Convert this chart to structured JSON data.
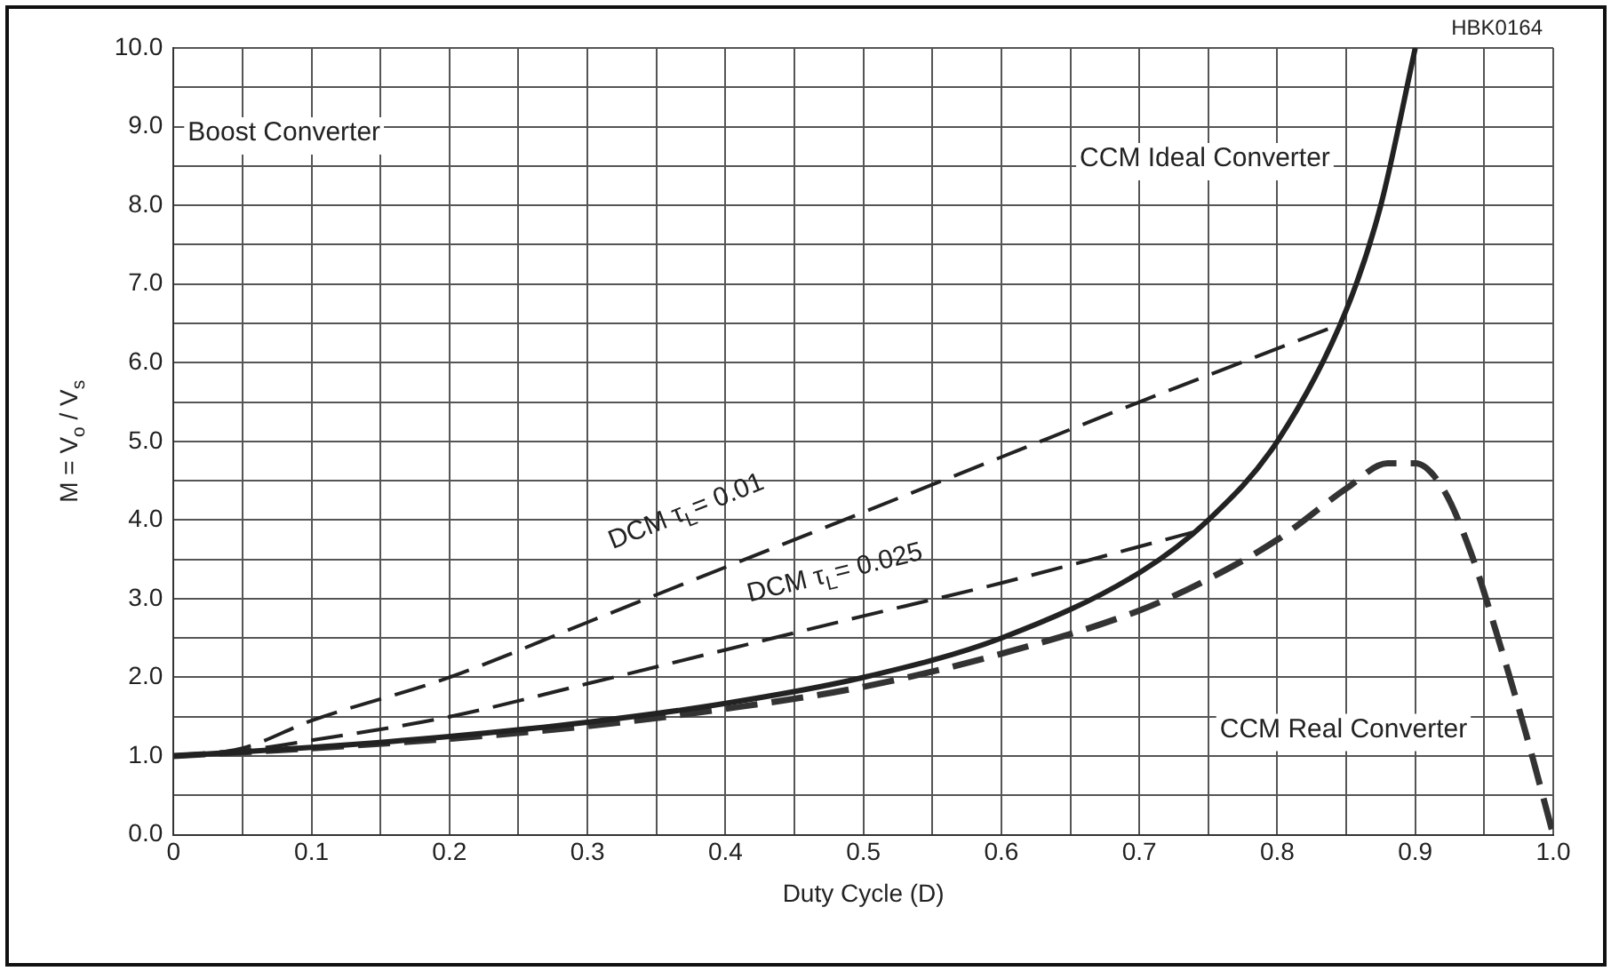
{
  "chart_data": {
    "type": "line",
    "title": "Boost Converter",
    "xlabel": "Duty Cycle (D)",
    "ylabel": "M = V$_{o}$ / V$_{s}$",
    "annotations": [
      "HBK0164"
    ],
    "xlim": [
      0,
      1
    ],
    "ylim": [
      0,
      10
    ],
    "xticks": [
      0,
      {
        "value": 0.05,
        "label": null
      },
      {
        "value": 0.1,
        "label": "0.1"
      },
      {
        "value": 0.15,
        "label": null
      },
      {
        "value": 0.2,
        "label": "0.2"
      },
      {
        "value": 0.25,
        "label": null
      },
      {
        "value": 0.3,
        "label": "0.3"
      },
      {
        "value": 0.35,
        "label": null
      },
      {
        "value": 0.4,
        "label": "0.4"
      },
      {
        "value": 0.45,
        "label": null
      },
      {
        "value": 0.5,
        "label": "0.5"
      },
      {
        "value": 0.55,
        "label": null
      },
      {
        "value": 0.6,
        "label": "0.6"
      },
      {
        "value": 0.65,
        "label": null
      },
      {
        "value": 0.7,
        "label": "0.7"
      },
      {
        "value": 0.75,
        "label": null
      },
      {
        "value": 0.8,
        "label": "0.8"
      },
      {
        "value": 0.85,
        "label": null
      },
      {
        "value": 0.9,
        "label": "0.9"
      },
      {
        "value": 0.95,
        "label": null
      },
      {
        "value": 1,
        "label": "1.0"
      }
    ],
    "yticks": [
      {
        "value": 0,
        "label": "0.0"
      },
      {
        "value": 0.5,
        "label": null
      },
      {
        "value": 1,
        "label": "1.0"
      },
      {
        "value": 1.5,
        "label": null
      },
      {
        "value": 2,
        "label": "2.0"
      },
      {
        "value": 2.5,
        "label": null
      },
      {
        "value": 3,
        "label": "3.0"
      },
      {
        "value": 3.5,
        "label": null
      },
      {
        "value": 4,
        "label": "4.0"
      },
      {
        "value": 4.5,
        "label": null
      },
      {
        "value": 5,
        "label": "5.0"
      },
      {
        "value": 5.5,
        "label": null
      },
      {
        "value": 6,
        "label": "6.0"
      },
      {
        "value": 6.5,
        "label": null
      },
      {
        "value": 7,
        "label": "7.0"
      },
      {
        "value": 7.5,
        "label": null
      },
      {
        "value": 8,
        "label": "8.0"
      },
      {
        "value": 8.5,
        "label": null
      },
      {
        "value": 9,
        "label": "9.0"
      },
      {
        "value": 9.5,
        "label": null
      },
      {
        "value": 10,
        "label": "10.0"
      }
    ],
    "grid": true,
    "legend": false,
    "marker": "none",
    "series": [
      {
        "name": "CCM Ideal Converter",
        "color": "#222222",
        "line_style": "solid",
        "x": [
          0,
          0.1,
          0.2,
          0.3,
          0.4,
          0.5,
          0.6,
          0.7,
          0.75,
          0.8,
          0.85,
          0.875,
          0.9
        ],
        "values": [
          1,
          1.11,
          1.25,
          1.43,
          1.67,
          2,
          2.5,
          3.33,
          4,
          5,
          6.67,
          8,
          10
        ]
      },
      {
        "name": "CCM Real Converter",
        "color": "#333333",
        "line_style": "dashed",
        "x": [
          0,
          0.1,
          0.2,
          0.3,
          0.4,
          0.5,
          0.6,
          0.7,
          0.75,
          0.8,
          0.85,
          0.88,
          0.9,
          0.92,
          0.94,
          0.96,
          0.98,
          1
        ],
        "values": [
          1,
          1.1,
          1.22,
          1.38,
          1.6,
          1.88,
          2.3,
          2.85,
          3.25,
          3.75,
          4.4,
          4.72,
          4.72,
          4.4,
          3.6,
          2.5,
          1.3,
          0
        ]
      },
      {
        "name": "DCM τ$_{L}$= 0.01",
        "color": "#222222",
        "line_style": "dashed",
        "x": [
          0,
          0.05,
          0.1,
          0.2,
          0.3,
          0.4,
          0.5,
          0.6,
          0.7,
          0.84
        ],
        "values": [
          1,
          1.1,
          1.45,
          2,
          2.7,
          3.4,
          4.1,
          4.8,
          5.5,
          6.45
        ]
      },
      {
        "name": "DCM τ$_{L}$= 0.025",
        "color": "#222222",
        "line_style": "dashed",
        "x": [
          0,
          0.05,
          0.1,
          0.2,
          0.3,
          0.4,
          0.5,
          0.6,
          0.74
        ],
        "values": [
          1,
          1.07,
          1.2,
          1.5,
          1.92,
          2.35,
          2.78,
          3.2,
          3.85
        ]
      }
    ]
  }
}
